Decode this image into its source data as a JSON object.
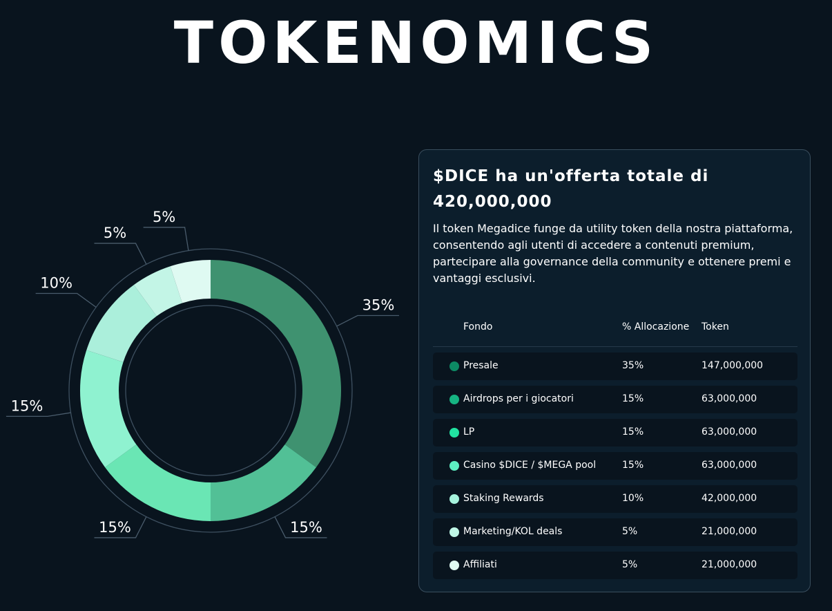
{
  "title": "TOKENOMICS",
  "panel": {
    "heading": "$DICE ha un'offerta totale di 420,000,000",
    "description": "Il token Megadice funge da utility token della nostra piattaforma, consentendo agli utenti di accedere a contenuti premium, partecipare alla governance della community e ottenere premi e vantaggi esclusivi.",
    "table": {
      "headers": {
        "fondo": "Fondo",
        "allocazione": "% Allocazione",
        "token": "Token"
      },
      "rows": [
        {
          "name": "Presale",
          "pct": "35%",
          "tokens": "147,000,000",
          "color": "#0d8a64"
        },
        {
          "name": "Airdrops per i giocatori",
          "pct": "15%",
          "tokens": "63,000,000",
          "color": "#16b482"
        },
        {
          "name": "LP",
          "pct": "15%",
          "tokens": "63,000,000",
          "color": "#21e3a1"
        },
        {
          "name": "Casino $DICE / $MEGA pool",
          "pct": "15%",
          "tokens": "63,000,000",
          "color": "#5df0c2"
        },
        {
          "name": "Staking Rewards",
          "pct": "10%",
          "tokens": "42,000,000",
          "color": "#a6f3dd"
        },
        {
          "name": "Marketing/KOL deals",
          "pct": "5%",
          "tokens": "21,000,000",
          "color": "#bff7e6"
        },
        {
          "name": "Affiliati",
          "pct": "5%",
          "tokens": "21,000,000",
          "color": "#e0fbf3"
        }
      ]
    }
  },
  "chart_data": {
    "type": "pie",
    "variant": "donut",
    "title": "",
    "categories": [
      "Presale",
      "Airdrops per i giocatori",
      "LP",
      "Casino $DICE / $MEGA pool",
      "Staking Rewards",
      "Marketing/KOL deals",
      "Affiliati"
    ],
    "values": [
      35,
      15,
      15,
      15,
      10,
      5,
      5
    ],
    "labels": [
      "35%",
      "15%",
      "15%",
      "15%",
      "10%",
      "5%",
      "5%"
    ],
    "colors": [
      "#3f9270",
      "#52c096",
      "#6ae6b4",
      "#8ff2d0",
      "#abefdb",
      "#c3f5e6",
      "#dffaf2"
    ],
    "legend": "table-right"
  }
}
